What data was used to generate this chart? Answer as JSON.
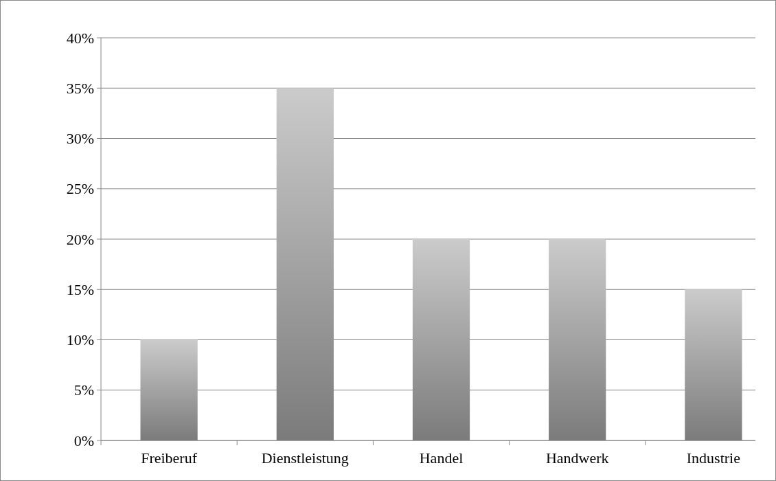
{
  "chart_data": {
    "type": "bar",
    "categories": [
      "Freiberuf",
      "Dienstleistung",
      "Handel",
      "Handwerk",
      "Industrie"
    ],
    "values": [
      10,
      35,
      20,
      20,
      15
    ],
    "color": "#9e9e9e",
    "ylim": [
      0,
      40
    ],
    "yticks": [
      {
        "value": 0,
        "label": "0%"
      },
      {
        "value": 5,
        "label": "5%"
      },
      {
        "value": 10,
        "label": "10%"
      },
      {
        "value": 15,
        "label": "15%"
      },
      {
        "value": 20,
        "label": "20%"
      },
      {
        "value": 25,
        "label": "25%"
      },
      {
        "value": 30,
        "label": "30%"
      },
      {
        "value": 35,
        "label": "35%"
      },
      {
        "value": 40,
        "label": "40%"
      }
    ],
    "grid": "y"
  }
}
